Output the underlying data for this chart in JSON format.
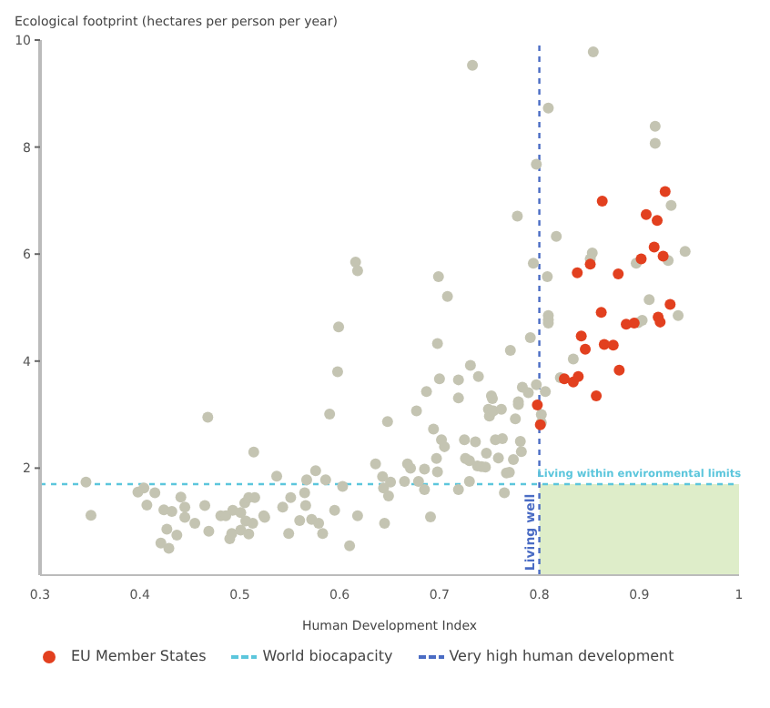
{
  "chart_data": {
    "type": "scatter",
    "ylabel": "Ecological footprint (hectares per person per year)",
    "xlabel": "Human Development Index",
    "xlim": [
      0.3,
      1
    ],
    "xticks": [
      0.3,
      0.4,
      0.5,
      0.6,
      0.7,
      0.8,
      0.9,
      1
    ],
    "ylim": [
      0,
      10
    ],
    "yticks": [
      2,
      4,
      6,
      8,
      10
    ],
    "grid": false,
    "legend": "bottom",
    "marker": "circle",
    "series": [
      {
        "color": "#c4c4b2",
        "x": [
          0.346,
          0.351,
          0.398,
          0.404,
          0.407,
          0.415,
          0.421,
          0.424,
          0.427,
          0.429,
          0.432,
          0.437,
          0.441,
          0.445,
          0.445,
          0.455,
          0.465,
          0.468,
          0.469,
          0.481,
          0.486,
          0.49,
          0.492,
          0.493,
          0.501,
          0.501,
          0.505,
          0.506,
          0.509,
          0.509,
          0.513,
          0.514,
          0.515,
          0.524,
          0.525,
          0.537,
          0.543,
          0.549,
          0.551,
          0.56,
          0.565,
          0.566,
          0.567,
          0.572,
          0.576,
          0.579,
          0.583,
          0.586,
          0.59,
          0.595,
          0.598,
          0.599,
          0.603,
          0.61,
          0.616,
          0.618,
          0.618,
          0.636,
          0.643,
          0.644,
          0.645,
          0.648,
          0.649,
          0.651,
          0.665,
          0.668,
          0.671,
          0.679,
          0.677,
          0.685,
          0.685,
          0.687,
          0.691,
          0.694,
          0.697,
          0.698,
          0.698,
          0.7,
          0.699,
          0.702,
          0.705,
          0.708,
          0.719,
          0.719,
          0.719,
          0.725,
          0.726,
          0.73,
          0.731,
          0.73,
          0.736,
          0.738,
          0.739,
          0.742,
          0.746,
          0.747,
          0.749,
          0.75,
          0.752,
          0.753,
          0.754,
          0.756,
          0.759,
          0.762,
          0.763,
          0.765,
          0.767,
          0.77,
          0.771,
          0.774,
          0.776,
          0.779,
          0.779,
          0.781,
          0.782,
          0.783,
          0.789,
          0.791,
          0.794,
          0.797,
          0.802,
          0.802,
          0.806,
          0.808,
          0.809,
          0.809,
          0.809,
          0.817,
          0.821,
          0.834,
          0.853,
          0.851,
          0.897,
          0.91,
          0.903,
          0.899,
          0.929,
          0.939,
          0.946,
          0.733,
          0.854,
          0.809,
          0.916,
          0.916,
          0.797,
          0.778,
          0.932
        ],
        "values": [
          1.74,
          1.12,
          1.55,
          1.63,
          1.31,
          1.54,
          0.6,
          1.22,
          0.86,
          0.5,
          1.19,
          0.75,
          1.46,
          1.27,
          1.08,
          0.97,
          1.3,
          2.95,
          0.82,
          1.11,
          1.11,
          0.68,
          0.78,
          1.21,
          1.17,
          0.84,
          1.35,
          1.01,
          1.45,
          0.77,
          0.97,
          2.3,
          1.45,
          1.11,
          1.08,
          1.85,
          1.27,
          0.78,
          1.45,
          1.02,
          1.54,
          1.3,
          1.78,
          1.04,
          1.95,
          0.97,
          0.78,
          1.78,
          3.01,
          1.21,
          3.8,
          4.64,
          1.66,
          0.55,
          5.85,
          5.69,
          1.11,
          2.08,
          1.84,
          1.63,
          0.97,
          2.87,
          1.48,
          1.74,
          1.75,
          2.08,
          2.0,
          1.75,
          3.07,
          1.98,
          1.6,
          3.43,
          1.09,
          2.73,
          2.18,
          1.93,
          4.33,
          3.67,
          5.58,
          2.53,
          2.4,
          5.21,
          3.65,
          3.31,
          1.6,
          2.53,
          2.18,
          2.14,
          3.92,
          1.75,
          2.49,
          2.04,
          3.71,
          2.03,
          2.02,
          2.28,
          3.1,
          2.97,
          3.35,
          3.3,
          3.07,
          2.53,
          2.19,
          3.1,
          2.55,
          1.54,
          1.91,
          1.92,
          4.2,
          2.16,
          2.92,
          3.24,
          3.19,
          2.5,
          2.31,
          3.51,
          3.41,
          4.44,
          5.83,
          3.56,
          3.0,
          2.85,
          3.43,
          5.58,
          4.85,
          4.77,
          4.71,
          6.33,
          3.69,
          4.04,
          6.02,
          5.91,
          5.83,
          5.15,
          4.76,
          4.72,
          5.88,
          4.85,
          6.05,
          9.53,
          9.78,
          8.73,
          8.39,
          8.07,
          7.68,
          6.71,
          6.91
        ]
      },
      {
        "name": "EU Member States",
        "color": "#e2401f",
        "x": [
          0.798,
          0.801,
          0.825,
          0.834,
          0.839,
          0.838,
          0.851,
          0.857,
          0.842,
          0.846,
          0.862,
          0.865,
          0.874,
          0.879,
          0.88,
          0.887,
          0.895,
          0.902,
          0.915,
          0.924,
          0.931,
          0.919,
          0.921,
          0.863,
          0.926,
          0.907,
          0.918
        ],
        "values": [
          3.18,
          2.81,
          3.67,
          3.61,
          3.71,
          5.65,
          5.81,
          3.35,
          4.47,
          4.22,
          4.91,
          4.31,
          4.3,
          5.63,
          3.83,
          4.69,
          4.71,
          5.91,
          6.13,
          5.96,
          5.06,
          4.82,
          4.73,
          6.99,
          7.17,
          6.74,
          6.63
        ]
      }
    ],
    "ref_lines": [
      {
        "axis": "y",
        "value": 1.7,
        "label": "World biocapacity",
        "color": "#5cc6dc",
        "line_style": "dashed"
      },
      {
        "axis": "x",
        "value": 0.8,
        "label": "Very high human development",
        "color": "#4a6cc4",
        "line_style": "dashed"
      }
    ],
    "bands": [
      {
        "axis": "x",
        "from": 0.8,
        "to": 1,
        "color": "#deedc9"
      }
    ],
    "annotations": [
      {
        "text": "Living within environmental limits",
        "x": 0.9,
        "y": 1.7
      },
      {
        "text": "Living well",
        "x": 0.8,
        "y": 0.8
      }
    ]
  }
}
